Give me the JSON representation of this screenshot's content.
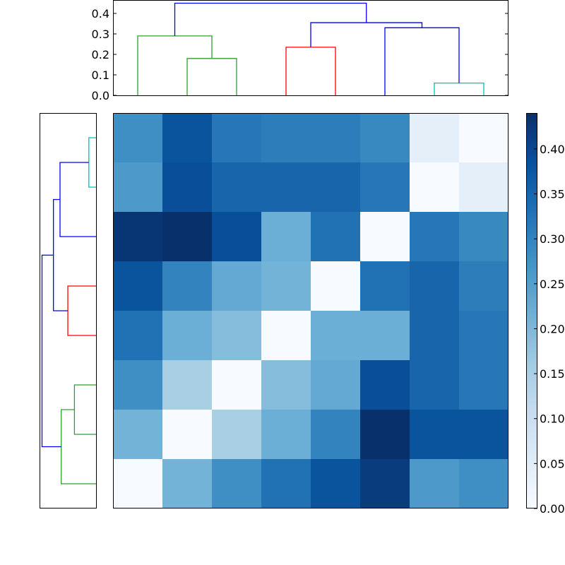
{
  "chart_data": {
    "type": "heatmap",
    "title": "",
    "description": "Clustered distance matrix heatmap with row and column dendrograms and colorbar",
    "colormap": "Blues",
    "matrix": [
      [
        0.28,
        0.38,
        0.32,
        0.31,
        0.31,
        0.29,
        0.04,
        0.0
      ],
      [
        0.26,
        0.39,
        0.35,
        0.35,
        0.35,
        0.32,
        0.0,
        0.04
      ],
      [
        0.43,
        0.44,
        0.39,
        0.22,
        0.33,
        0.0,
        0.32,
        0.29
      ],
      [
        0.38,
        0.3,
        0.23,
        0.21,
        0.0,
        0.33,
        0.35,
        0.31
      ],
      [
        0.33,
        0.22,
        0.19,
        0.0,
        0.22,
        0.22,
        0.35,
        0.32
      ],
      [
        0.28,
        0.15,
        0.0,
        0.19,
        0.23,
        0.39,
        0.35,
        0.32
      ],
      [
        0.21,
        0.0,
        0.15,
        0.22,
        0.3,
        0.44,
        0.38,
        0.38
      ],
      [
        0.0,
        0.21,
        0.28,
        0.33,
        0.38,
        0.42,
        0.26,
        0.28
      ]
    ],
    "colorbar": {
      "min": 0.0,
      "max": 0.44,
      "ticks": [
        "0.00",
        "0.05",
        "0.10",
        "0.15",
        "0.20",
        "0.25",
        "0.30",
        "0.35",
        "0.40"
      ]
    },
    "top_dendrogram": {
      "yticks": [
        "0.0",
        "0.1",
        "0.2",
        "0.3",
        "0.4"
      ],
      "ylim": [
        0.0,
        0.466
      ],
      "links": [
        {
          "left": 0,
          "right": 0,
          "height": 0.18,
          "color": "#2ca02c",
          "note": "leaves 2-3"
        },
        {
          "color": "#2ca02c",
          "x": [
            1,
            1,
            2.5,
            2.5
          ],
          "y": [
            0,
            0.29,
            0.29,
            0.18
          ]
        },
        {
          "color": "#2ca02c",
          "x": [
            2,
            2,
            3,
            3
          ],
          "y": [
            0,
            0.18,
            0.18,
            0
          ]
        },
        {
          "color": "#ff0000",
          "x": [
            4,
            4,
            5,
            5
          ],
          "y": [
            0,
            0.235,
            0.235,
            0
          ]
        },
        {
          "color": "#00bfbf",
          "x": [
            7,
            7,
            8,
            8
          ],
          "y": [
            0,
            0.06,
            0.06,
            0
          ]
        },
        {
          "color": "#0000ff",
          "x": [
            6,
            6,
            7.5,
            7.5
          ],
          "y": [
            0,
            0.33,
            0.33,
            0.06
          ]
        },
        {
          "color": "#0000ff",
          "x": [
            4.5,
            4.5,
            6.75,
            6.75
          ],
          "y": [
            0.235,
            0.355,
            0.355,
            0.33
          ]
        },
        {
          "color": "#0000ff",
          "x": [
            1.75,
            1.75,
            5.625,
            5.625
          ],
          "y": [
            0.29,
            0.45,
            0.45,
            0.355
          ]
        }
      ]
    },
    "left_dendrogram": {
      "orientation": "left",
      "links": [
        {
          "color": "#00bfbf",
          "y": [
            1,
            1,
            2,
            2
          ],
          "h": [
            0,
            0.06,
            0.06,
            0
          ]
        },
        {
          "color": "#0000ff",
          "y": [
            1.5,
            1.5,
            3,
            3
          ],
          "h": [
            0.06,
            0.3,
            0.3,
            0
          ]
        },
        {
          "color": "#ff0000",
          "y": [
            4,
            4,
            5,
            5
          ],
          "h": [
            0,
            0.235,
            0.235,
            0
          ]
        },
        {
          "color": "#0000ff",
          "y": [
            2.25,
            2.25,
            4.5,
            4.5
          ],
          "h": [
            0.3,
            0.355,
            0.355,
            0.235
          ]
        },
        {
          "color": "#2ca02c",
          "y": [
            6,
            6,
            7,
            7
          ],
          "h": [
            0,
            0.18,
            0.18,
            0
          ]
        },
        {
          "color": "#2ca02c",
          "y": [
            6.5,
            6.5,
            8,
            8
          ],
          "h": [
            0.18,
            0.29,
            0.29,
            0
          ]
        },
        {
          "color": "#0000ff",
          "y": [
            3.375,
            3.375,
            7.25,
            7.25
          ],
          "h": [
            0.355,
            0.45,
            0.45,
            0.29
          ]
        }
      ]
    },
    "grid": false,
    "legend": null
  },
  "colors": {
    "dendro_green": "#2ca02c",
    "dendro_red": "#ff0000",
    "dendro_cyan": "#00bfbf",
    "dendro_blue": "#0000ff",
    "axis": "#000000"
  }
}
